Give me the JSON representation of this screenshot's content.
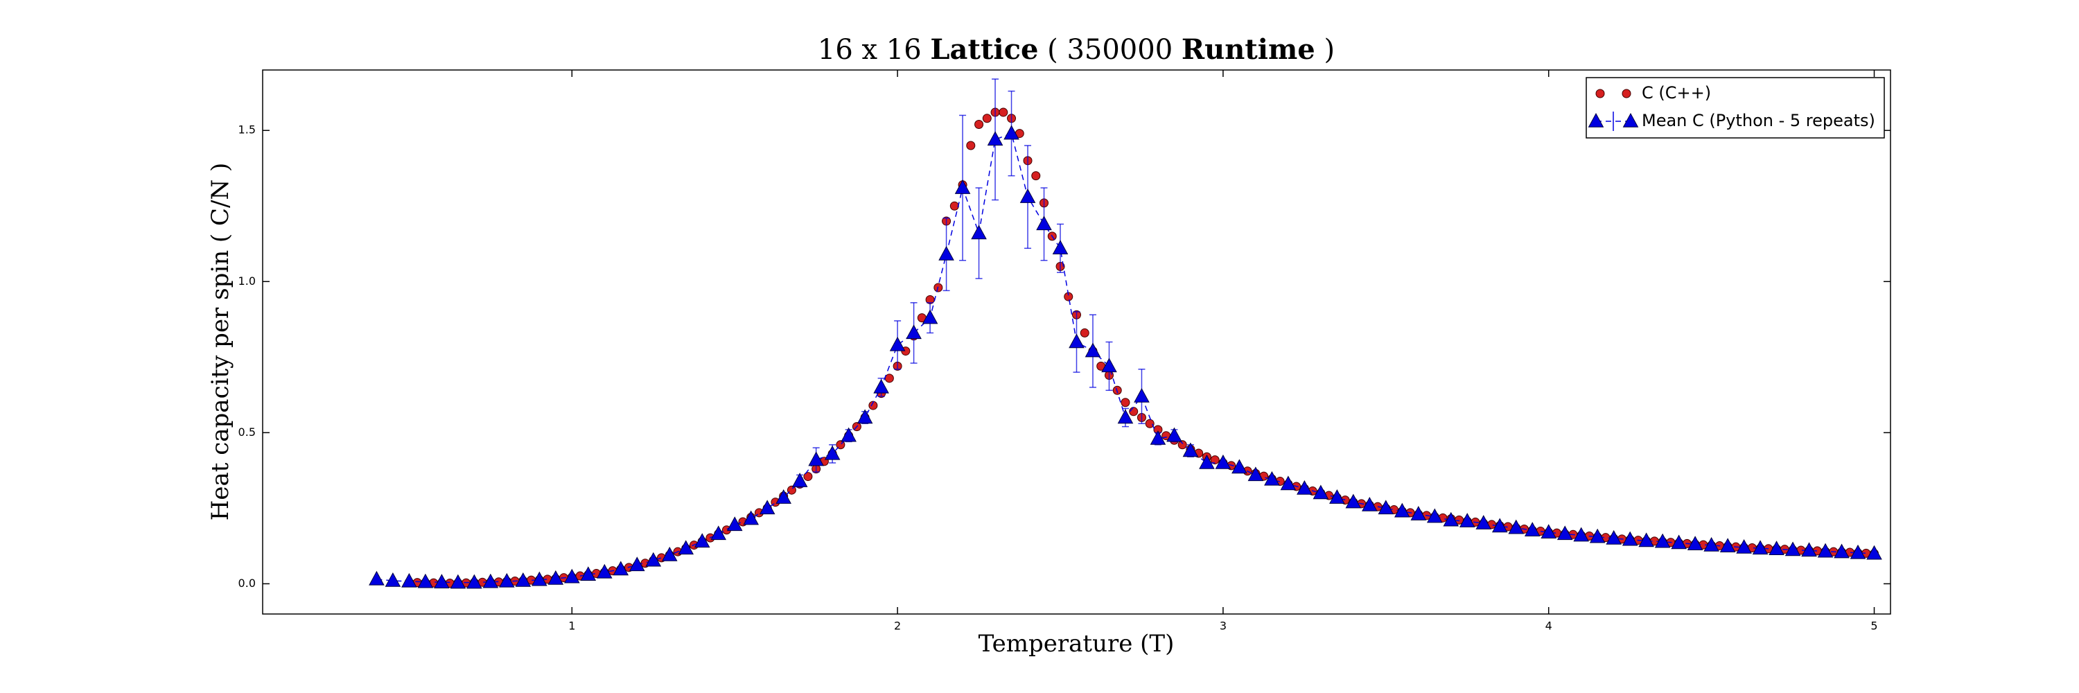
{
  "chart_data": {
    "type": "scatter",
    "title": [
      "16 x 16 ",
      "Lattice",
      " ( 350000 ",
      "Runtime",
      " )"
    ],
    "xlabel": "Temperature (T)",
    "ylabel": "Heat capacity per spin ( C/N )",
    "xlim": [
      0.05,
      5.05
    ],
    "ylim": [
      -0.1,
      1.7
    ],
    "xticks": [
      1,
      2,
      3,
      4,
      5
    ],
    "yticks": [
      {
        "value": 0,
        "label": "0.0"
      },
      {
        "value": 0.5,
        "label": "0.5"
      },
      {
        "value": 1,
        "label": "1.0"
      },
      {
        "value": 1.5,
        "label": "1.5"
      }
    ],
    "grid": false,
    "legend": "upper right",
    "series": [
      {
        "name": "C (C++)",
        "color": "#d62020",
        "marker": "circle",
        "x": [
          0.5,
          0.525,
          0.55,
          0.575,
          0.6,
          0.625,
          0.65,
          0.675,
          0.7,
          0.725,
          0.75,
          0.775,
          0.8,
          0.825,
          0.85,
          0.875,
          0.9,
          0.925,
          0.95,
          0.975,
          1.0,
          1.025,
          1.05,
          1.075,
          1.1,
          1.125,
          1.15,
          1.175,
          1.2,
          1.225,
          1.25,
          1.275,
          1.3,
          1.325,
          1.35,
          1.375,
          1.4,
          1.425,
          1.45,
          1.475,
          1.5,
          1.525,
          1.55,
          1.575,
          1.6,
          1.625,
          1.65,
          1.675,
          1.7,
          1.725,
          1.75,
          1.775,
          1.8,
          1.825,
          1.85,
          1.875,
          1.9,
          1.925,
          1.95,
          1.975,
          2.0,
          2.025,
          2.05,
          2.075,
          2.1,
          2.125,
          2.15,
          2.175,
          2.2,
          2.225,
          2.25,
          2.275,
          2.3,
          2.325,
          2.35,
          2.375,
          2.4,
          2.425,
          2.45,
          2.475,
          2.5,
          2.525,
          2.55,
          2.575,
          2.6,
          2.625,
          2.65,
          2.675,
          2.7,
          2.725,
          2.75,
          2.775,
          2.8,
          2.825,
          2.85,
          2.875,
          2.9,
          2.925,
          2.95,
          2.975,
          3.0,
          3.025,
          3.05,
          3.075,
          3.1,
          3.125,
          3.15,
          3.175,
          3.2,
          3.225,
          3.25,
          3.275,
          3.3,
          3.325,
          3.35,
          3.375,
          3.4,
          3.425,
          3.45,
          3.475,
          3.5,
          3.525,
          3.55,
          3.575,
          3.6,
          3.625,
          3.65,
          3.675,
          3.7,
          3.725,
          3.75,
          3.775,
          3.8,
          3.825,
          3.85,
          3.875,
          3.9,
          3.925,
          3.95,
          3.975,
          4.0,
          4.025,
          4.05,
          4.075,
          4.1,
          4.125,
          4.15,
          4.175,
          4.2,
          4.225,
          4.25,
          4.275,
          4.3,
          4.325,
          4.35,
          4.375,
          4.4,
          4.425,
          4.45,
          4.475,
          4.5,
          4.525,
          4.55,
          4.575,
          4.6,
          4.625,
          4.65,
          4.675,
          4.7,
          4.725,
          4.75,
          4.775,
          4.8,
          4.825,
          4.85,
          4.875,
          4.9,
          4.925,
          4.95,
          4.975,
          5.0
        ],
        "values": [
          0.005,
          0.004,
          0.004,
          0.003,
          0.003,
          0.002,
          0.003,
          0.003,
          0.004,
          0.005,
          0.005,
          0.006,
          0.008,
          0.009,
          0.01,
          0.012,
          0.013,
          0.015,
          0.017,
          0.02,
          0.022,
          0.026,
          0.03,
          0.034,
          0.038,
          0.043,
          0.048,
          0.054,
          0.06,
          0.068,
          0.077,
          0.086,
          0.095,
          0.106,
          0.117,
          0.128,
          0.14,
          0.152,
          0.165,
          0.178,
          0.19,
          0.205,
          0.22,
          0.235,
          0.25,
          0.27,
          0.29,
          0.31,
          0.33,
          0.355,
          0.38,
          0.405,
          0.43,
          0.46,
          0.49,
          0.52,
          0.55,
          0.59,
          0.63,
          0.68,
          0.72,
          0.77,
          0.82,
          0.88,
          0.94,
          0.98,
          1.2,
          1.25,
          1.32,
          1.45,
          1.52,
          1.54,
          1.56,
          1.56,
          1.54,
          1.49,
          1.4,
          1.35,
          1.26,
          1.15,
          1.05,
          0.95,
          0.89,
          0.83,
          0.77,
          0.72,
          0.69,
          0.64,
          0.6,
          0.57,
          0.55,
          0.53,
          0.51,
          0.49,
          0.475,
          0.46,
          0.445,
          0.432,
          0.42,
          0.41,
          0.4,
          0.391,
          0.382,
          0.373,
          0.365,
          0.356,
          0.347,
          0.339,
          0.33,
          0.322,
          0.315,
          0.307,
          0.3,
          0.292,
          0.285,
          0.277,
          0.27,
          0.265,
          0.26,
          0.255,
          0.25,
          0.245,
          0.24,
          0.235,
          0.23,
          0.226,
          0.222,
          0.218,
          0.215,
          0.211,
          0.207,
          0.204,
          0.2,
          0.196,
          0.192,
          0.189,
          0.185,
          0.181,
          0.177,
          0.174,
          0.17,
          0.168,
          0.165,
          0.163,
          0.16,
          0.158,
          0.155,
          0.153,
          0.15,
          0.148,
          0.146,
          0.144,
          0.142,
          0.141,
          0.139,
          0.137,
          0.135,
          0.133,
          0.131,
          0.129,
          0.127,
          0.126,
          0.124,
          0.122,
          0.12,
          0.119,
          0.117,
          0.116,
          0.115,
          0.114,
          0.112,
          0.111,
          0.11,
          0.109,
          0.107,
          0.106,
          0.105,
          0.104,
          0.102,
          0.101,
          0.1
        ]
      },
      {
        "name": "Mean C (Python - 5 repeats)",
        "color": "#0000e0",
        "marker": "triangle",
        "line": "dashed",
        "x": [
          0.4,
          0.45,
          0.5,
          0.55,
          0.6,
          0.65,
          0.7,
          0.75,
          0.8,
          0.85,
          0.9,
          0.95,
          1.0,
          1.05,
          1.1,
          1.15,
          1.2,
          1.25,
          1.3,
          1.35,
          1.4,
          1.45,
          1.5,
          1.55,
          1.6,
          1.65,
          1.7,
          1.75,
          1.8,
          1.85,
          1.9,
          1.95,
          2.0,
          2.05,
          2.1,
          2.15,
          2.2,
          2.25,
          2.3,
          2.35,
          2.4,
          2.45,
          2.5,
          2.55,
          2.6,
          2.65,
          2.7,
          2.75,
          2.8,
          2.85,
          2.9,
          2.95,
          3.0,
          3.05,
          3.1,
          3.15,
          3.2,
          3.25,
          3.3,
          3.35,
          3.4,
          3.45,
          3.5,
          3.55,
          3.6,
          3.65,
          3.7,
          3.75,
          3.8,
          3.85,
          3.9,
          3.95,
          4.0,
          4.05,
          4.1,
          4.15,
          4.2,
          4.25,
          4.3,
          4.35,
          4.4,
          4.45,
          4.5,
          4.55,
          4.6,
          4.65,
          4.7,
          4.75,
          4.8,
          4.85,
          4.9,
          4.95,
          5.0
        ],
        "values": [
          0.015,
          0.01,
          0.008,
          0.006,
          0.005,
          0.004,
          0.004,
          0.006,
          0.008,
          0.01,
          0.013,
          0.017,
          0.022,
          0.03,
          0.038,
          0.048,
          0.062,
          0.077,
          0.095,
          0.117,
          0.14,
          0.165,
          0.195,
          0.215,
          0.25,
          0.285,
          0.34,
          0.41,
          0.43,
          0.49,
          0.55,
          0.65,
          0.79,
          0.83,
          0.88,
          1.09,
          1.31,
          1.16,
          1.47,
          1.49,
          1.28,
          1.19,
          1.11,
          0.8,
          0.77,
          0.72,
          0.55,
          0.62,
          0.48,
          0.49,
          0.44,
          0.4,
          0.4,
          0.385,
          0.36,
          0.345,
          0.33,
          0.315,
          0.3,
          0.285,
          0.27,
          0.26,
          0.25,
          0.24,
          0.23,
          0.222,
          0.21,
          0.207,
          0.2,
          0.19,
          0.185,
          0.177,
          0.17,
          0.165,
          0.16,
          0.155,
          0.15,
          0.146,
          0.142,
          0.139,
          0.135,
          0.131,
          0.127,
          0.124,
          0.12,
          0.117,
          0.115,
          0.112,
          0.11,
          0.107,
          0.105,
          0.102,
          0.1
        ],
        "errors": [
          0.005,
          0.005,
          0.005,
          0.005,
          0.005,
          0.005,
          0.005,
          0.005,
          0.005,
          0.005,
          0.005,
          0.005,
          0.005,
          0.005,
          0.005,
          0.005,
          0.005,
          0.005,
          0.005,
          0.005,
          0.005,
          0.005,
          0.005,
          0.005,
          0.005,
          0.005,
          0.02,
          0.04,
          0.03,
          0.02,
          0.02,
          0.03,
          0.08,
          0.1,
          0.05,
          0.12,
          0.24,
          0.15,
          0.2,
          0.14,
          0.17,
          0.12,
          0.08,
          0.1,
          0.12,
          0.08,
          0.03,
          0.09,
          0.02,
          0.02,
          0.02,
          0.005,
          0.005,
          0.005,
          0.005,
          0.005,
          0.005,
          0.005,
          0.005,
          0.005,
          0.005,
          0.005,
          0.005,
          0.005,
          0.005,
          0.005,
          0.005,
          0.005,
          0.005,
          0.005,
          0.005,
          0.005,
          0.005,
          0.005,
          0.005,
          0.005,
          0.005,
          0.005,
          0.005,
          0.005,
          0.005,
          0.005,
          0.005,
          0.005,
          0.005,
          0.005,
          0.005,
          0.005,
          0.005,
          0.005,
          0.005,
          0.005,
          0.005
        ]
      }
    ]
  }
}
